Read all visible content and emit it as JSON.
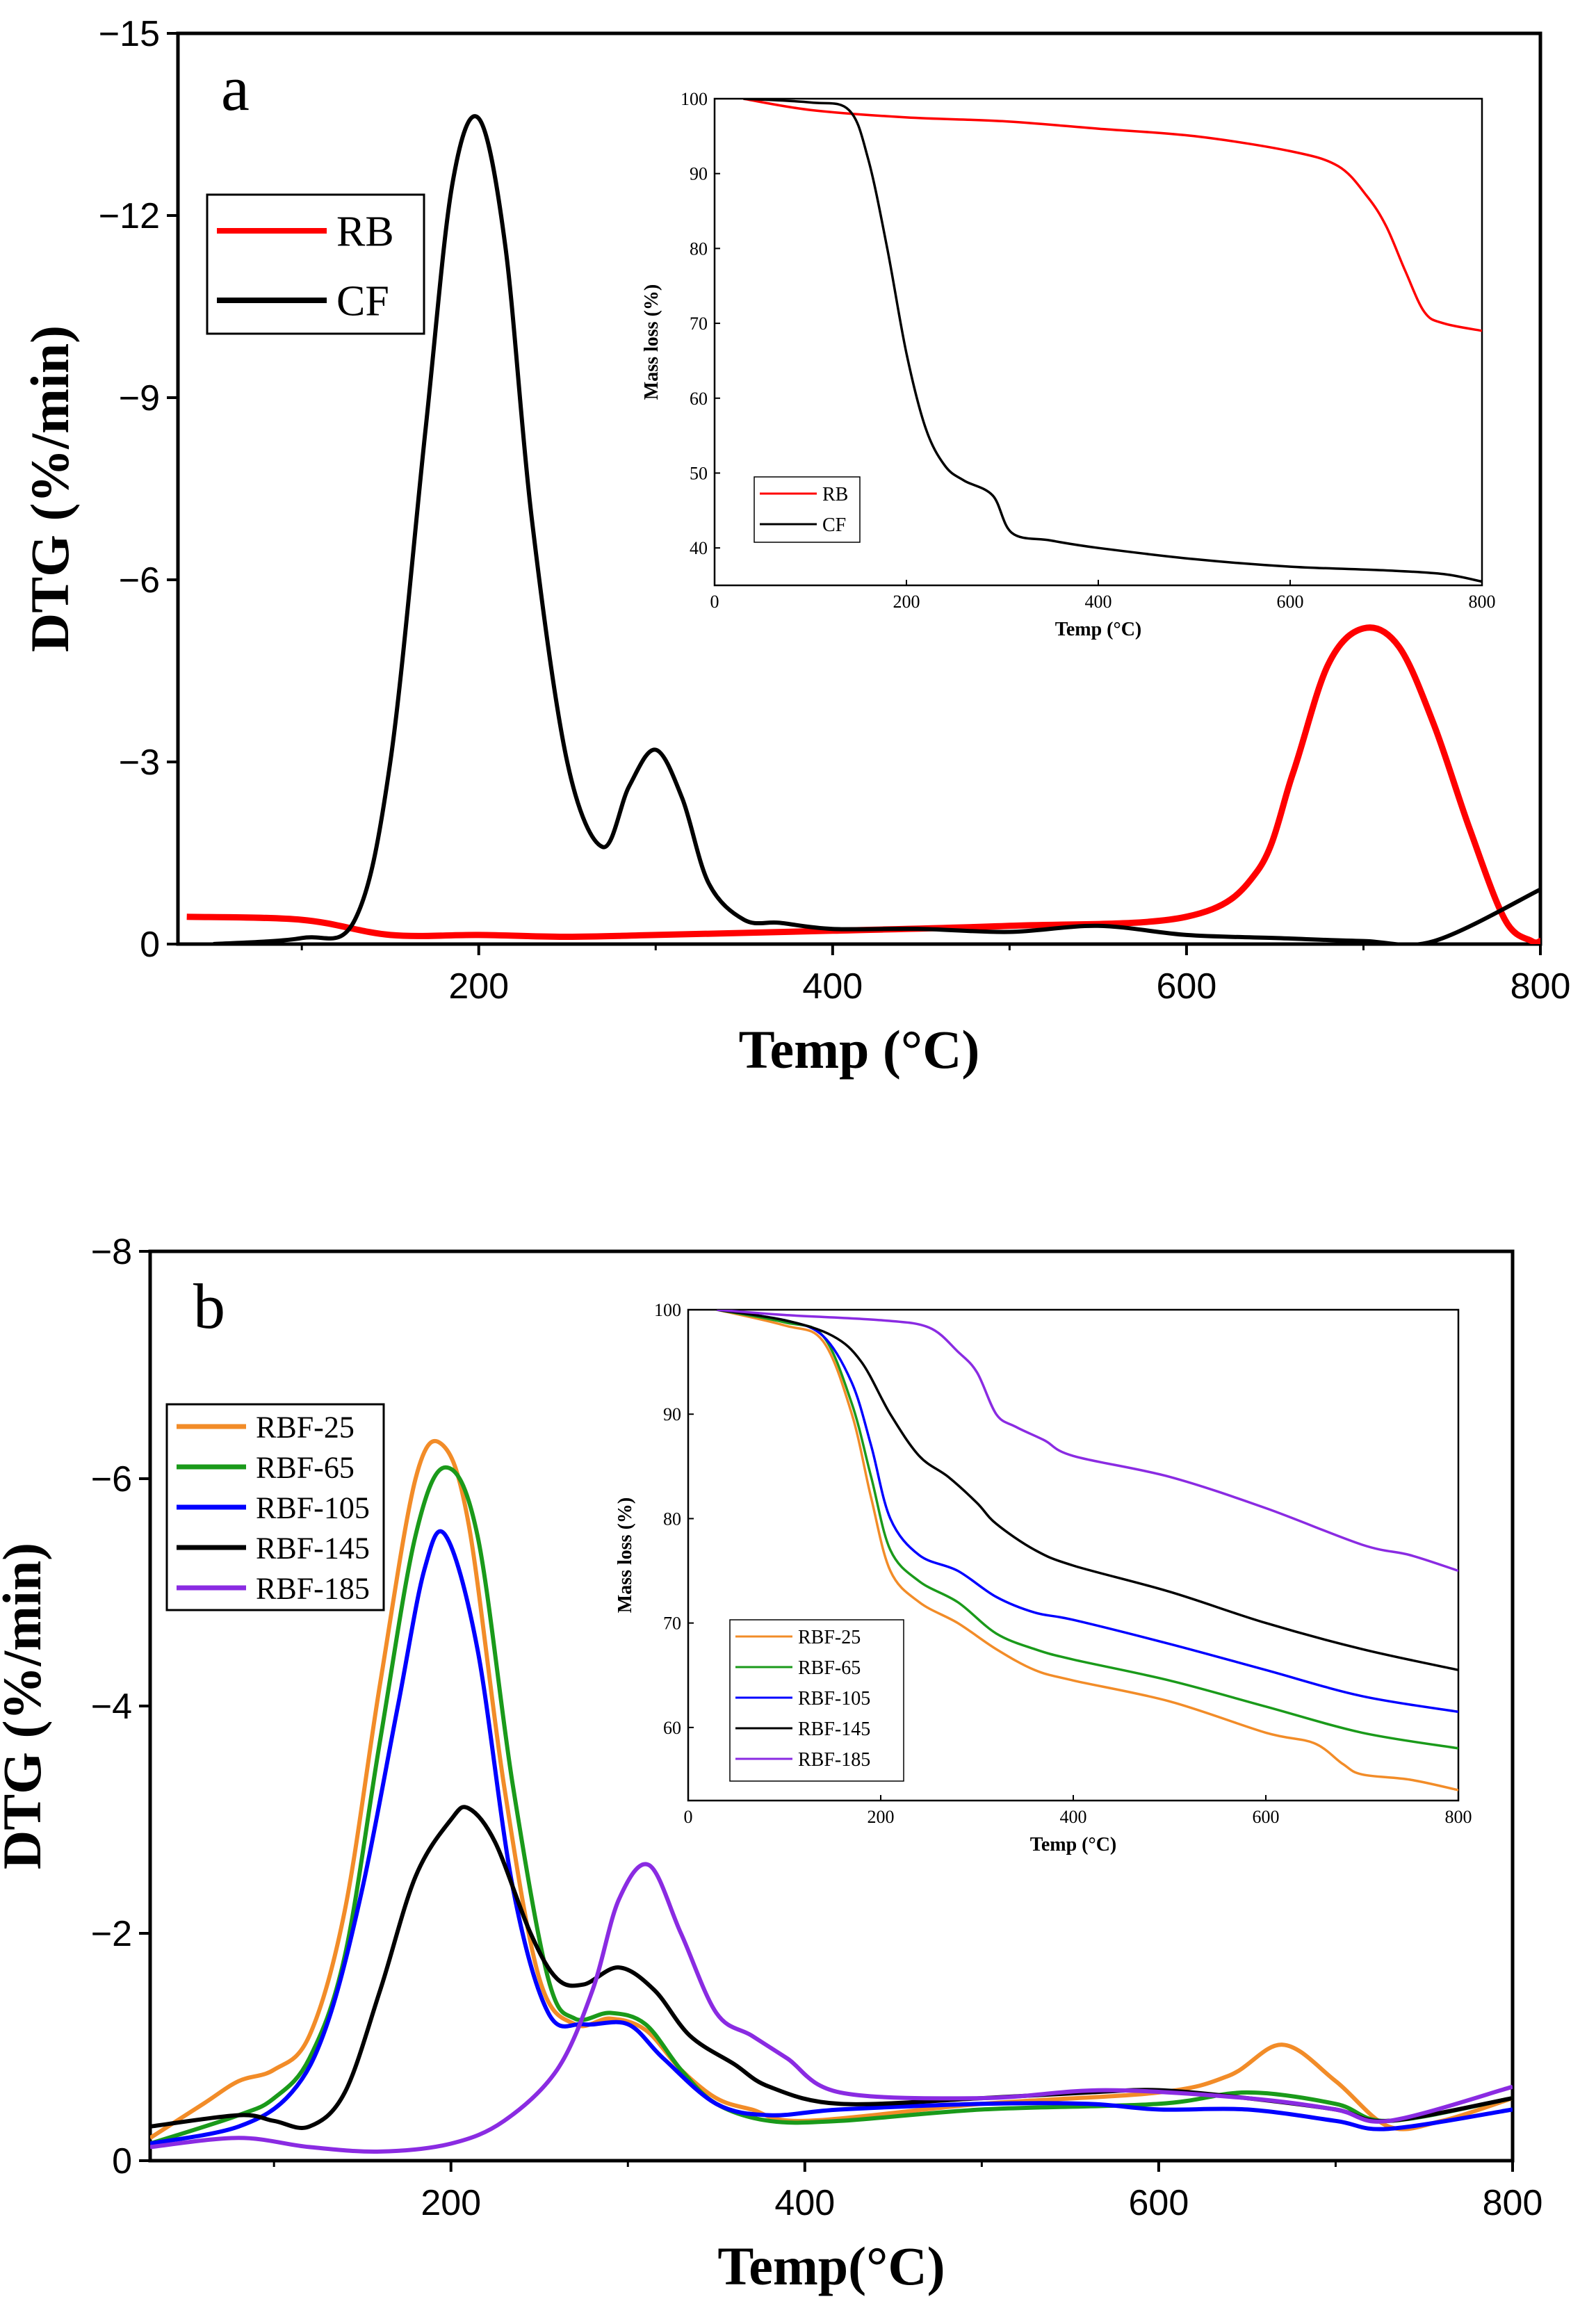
{
  "chart_data": [
    {
      "type": "line",
      "panel_label": "a",
      "xlabel": "Temp (°C)",
      "ylabel": "DTG (%/min)",
      "xlim": [
        30,
        800
      ],
      "ylim": [
        0,
        -15
      ],
      "xticks": [
        200,
        400,
        600,
        800
      ],
      "yticks": [
        0,
        -3,
        -6,
        -9,
        -12,
        -15
      ],
      "legend": [
        "RB",
        "CF"
      ],
      "series": [
        {
          "name": "RB",
          "color": "#ff0000",
          "x": [
            35,
            100,
            150,
            200,
            250,
            300,
            400,
            500,
            600,
            640,
            660,
            680,
            700,
            720,
            740,
            760,
            780,
            795,
            800
          ],
          "y": [
            -0.45,
            -0.4,
            -0.15,
            -0.15,
            -0.12,
            -0.15,
            -0.22,
            -0.3,
            -0.45,
            -1.2,
            -2.8,
            -4.6,
            -5.2,
            -4.9,
            -3.6,
            -1.9,
            -0.4,
            -0.05,
            -0.05
          ]
        },
        {
          "name": "CF",
          "color": "#000000",
          "x": [
            50,
            100,
            130,
            150,
            170,
            185,
            200,
            215,
            230,
            250,
            270,
            285,
            300,
            315,
            330,
            350,
            370,
            400,
            450,
            500,
            550,
            600,
            650,
            700,
            740,
            800
          ],
          "y": [
            0,
            -0.1,
            -0.4,
            -3.0,
            -8.5,
            -12.5,
            -13.6,
            -11.5,
            -7.0,
            -3.0,
            -1.6,
            -2.6,
            -3.2,
            -2.4,
            -1.0,
            -0.4,
            -0.35,
            -0.25,
            -0.25,
            -0.2,
            -0.3,
            -0.15,
            -0.1,
            -0.05,
            -0.05,
            -0.9
          ]
        }
      ],
      "inset": {
        "xlabel": "Temp (°C)",
        "ylabel": "Mass loss (%)",
        "xlim": [
          0,
          800
        ],
        "ylim": [
          35,
          100
        ],
        "xticks": [
          0,
          200,
          400,
          600,
          800
        ],
        "yticks": [
          40,
          50,
          60,
          70,
          80,
          90,
          100
        ],
        "series": [
          {
            "name": "RB",
            "color": "#ff0000",
            "x": [
              30,
              100,
              200,
              300,
              400,
              500,
              600,
              650,
              680,
              700,
              720,
              740,
              760,
              800
            ],
            "y": [
              100,
              98.5,
              97.5,
              97,
              96,
              95,
              93,
              91,
              87,
              83,
              77,
              71.5,
              70,
              69
            ]
          },
          {
            "name": "CF",
            "color": "#000000",
            "x": [
              30,
              100,
              140,
              160,
              180,
              200,
              220,
              240,
              260,
              290,
              310,
              350,
              400,
              500,
              600,
              700,
              760,
              800
            ],
            "y": [
              100,
              99.5,
              98.5,
              92,
              80,
              66,
              56,
              51,
              49,
              47,
              42,
              41,
              40,
              38.5,
              37.5,
              37,
              36.5,
              35.5
            ]
          }
        ]
      }
    },
    {
      "type": "line",
      "panel_label": "b",
      "xlabel": "Temp(°C)",
      "ylabel": "DTG (%/min)",
      "xlim": [
        30,
        800
      ],
      "ylim": [
        0,
        -8
      ],
      "xticks": [
        200,
        400,
        600,
        800
      ],
      "yticks": [
        0,
        -2,
        -4,
        -6,
        -8
      ],
      "legend": [
        "RBF-25",
        "RBF-65",
        "RBF-105",
        "RBF-145",
        "RBF-185"
      ],
      "series": [
        {
          "name": "RBF-25",
          "color": "#f28c28",
          "x": [
            30,
            60,
            80,
            100,
            120,
            140,
            160,
            180,
            195,
            210,
            230,
            250,
            270,
            290,
            310,
            330,
            350,
            370,
            400,
            500,
            600,
            640,
            670,
            700,
            730,
            760,
            800
          ],
          "y": [
            -0.2,
            -0.5,
            -0.7,
            -0.8,
            -1.1,
            -2.2,
            -4.2,
            -6.0,
            -6.3,
            -5.6,
            -3.3,
            -1.6,
            -1.2,
            -1.25,
            -1.15,
            -0.8,
            -0.55,
            -0.45,
            -0.35,
            -0.5,
            -0.6,
            -0.75,
            -1.02,
            -0.7,
            -0.3,
            -0.35,
            -0.55
          ]
        },
        {
          "name": "RBF-65",
          "color": "#1a9a1a",
          "x": [
            30,
            80,
            100,
            120,
            140,
            160,
            180,
            197,
            215,
            235,
            255,
            270,
            290,
            310,
            330,
            350,
            380,
            420,
            500,
            600,
            650,
            700,
            730,
            800
          ],
          "y": [
            -0.15,
            -0.4,
            -0.55,
            -0.9,
            -1.8,
            -3.7,
            -5.5,
            -6.1,
            -5.5,
            -3.3,
            -1.6,
            -1.25,
            -1.3,
            -1.2,
            -0.8,
            -0.5,
            -0.35,
            -0.35,
            -0.45,
            -0.5,
            -0.6,
            -0.5,
            -0.35,
            -0.55
          ]
        },
        {
          "name": "RBF-105",
          "color": "#0000ff",
          "x": [
            30,
            80,
            110,
            130,
            150,
            170,
            185,
            197,
            215,
            235,
            255,
            275,
            300,
            320,
            350,
            380,
            420,
            500,
            560,
            600,
            650,
            700,
            730,
            800
          ],
          "y": [
            -0.15,
            -0.3,
            -0.6,
            -1.2,
            -2.4,
            -4.0,
            -5.2,
            -5.5,
            -4.5,
            -2.4,
            -1.3,
            -1.2,
            -1.2,
            -0.9,
            -0.5,
            -0.4,
            -0.45,
            -0.5,
            -0.5,
            -0.45,
            -0.45,
            -0.35,
            -0.28,
            -0.45
          ]
        },
        {
          "name": "RBF-145",
          "color": "#000000",
          "x": [
            30,
            80,
            100,
            120,
            140,
            160,
            180,
            200,
            210,
            225,
            245,
            260,
            275,
            295,
            315,
            335,
            360,
            380,
            420,
            500,
            560,
            600,
            650,
            700,
            730,
            800
          ],
          "y": [
            -0.3,
            -0.4,
            -0.35,
            -0.3,
            -0.6,
            -1.5,
            -2.5,
            -3.0,
            -3.1,
            -2.8,
            -2.0,
            -1.6,
            -1.55,
            -1.7,
            -1.5,
            -1.1,
            -0.85,
            -0.65,
            -0.5,
            -0.55,
            -0.6,
            -0.62,
            -0.55,
            -0.45,
            -0.35,
            -0.55
          ]
        },
        {
          "name": "RBF-185",
          "color": "#8a2be2",
          "x": [
            30,
            80,
            120,
            160,
            200,
            230,
            260,
            280,
            295,
            312,
            330,
            350,
            370,
            390,
            420,
            500,
            570,
            650,
            700,
            730,
            800
          ],
          "y": [
            -0.12,
            -0.2,
            -0.12,
            -0.08,
            -0.15,
            -0.35,
            -0.8,
            -1.5,
            -2.3,
            -2.6,
            -2.0,
            -1.3,
            -1.1,
            -0.9,
            -0.6,
            -0.55,
            -0.62,
            -0.55,
            -0.45,
            -0.35,
            -0.65
          ]
        }
      ],
      "inset": {
        "xlabel": "Temp (°C)",
        "ylabel": "Mass loss (%)",
        "xlim": [
          0,
          800
        ],
        "ylim": [
          53,
          100
        ],
        "xticks": [
          0,
          200,
          400,
          600,
          800
        ],
        "yticks": [
          60,
          70,
          80,
          90,
          100
        ],
        "series": [
          {
            "name": "RBF-25",
            "color": "#f28c28",
            "x": [
              30,
              100,
              140,
              170,
              190,
              210,
              240,
              280,
              320,
              360,
              400,
              500,
              600,
              650,
              680,
              700,
              750,
              800
            ],
            "y": [
              100,
              98.5,
              97,
              90,
              82,
              75,
              72,
              70,
              67.5,
              65.5,
              64.5,
              62.5,
              59.5,
              58.5,
              56.5,
              55.5,
              55,
              54
            ]
          },
          {
            "name": "RBF-65",
            "color": "#1a9a1a",
            "x": [
              30,
              100,
              140,
              170,
              190,
              210,
              240,
              280,
              320,
              360,
              400,
              500,
              600,
              700,
              800
            ],
            "y": [
              100,
              98.8,
              97.5,
              91,
              84,
              77,
              74,
              72,
              69,
              67.5,
              66.5,
              64.5,
              62,
              59.5,
              58
            ]
          },
          {
            "name": "RBF-105",
            "color": "#0000ff",
            "x": [
              30,
              100,
              140,
              170,
              190,
              210,
              240,
              280,
              320,
              360,
              400,
              500,
              600,
              700,
              800
            ],
            "y": [
              100,
              99,
              97.5,
              93,
              87,
              80,
              76.5,
              75,
              72.5,
              71,
              70.3,
              68,
              65.5,
              63,
              61.5
            ]
          },
          {
            "name": "RBF-145",
            "color": "#000000",
            "x": [
              30,
              100,
              150,
              180,
              210,
              240,
              270,
              300,
              320,
              360,
              400,
              500,
              600,
              700,
              800
            ],
            "y": [
              100,
              99,
              97.5,
              95,
              90,
              86,
              84,
              81.5,
              79.5,
              77,
              75.5,
              73,
              70,
              67.5,
              65.5
            ]
          },
          {
            "name": "RBF-185",
            "color": "#8a2be2",
            "x": [
              30,
              100,
              200,
              250,
              280,
              300,
              320,
              340,
              370,
              400,
              500,
              600,
              700,
              750,
              800
            ],
            "y": [
              100,
              99.5,
              99,
              98.3,
              96,
              94,
              90,
              88.8,
              87.5,
              86,
              84,
              81,
              77.5,
              76.5,
              75
            ]
          }
        ]
      }
    }
  ]
}
